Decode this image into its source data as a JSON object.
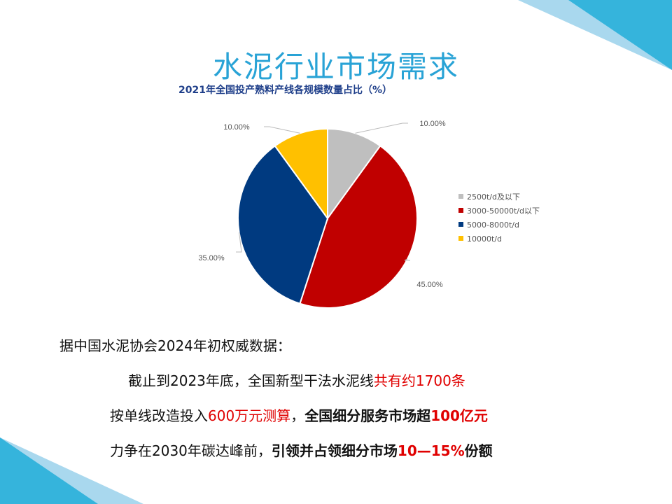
{
  "slide": {
    "title": "水泥行业市场需求",
    "lines": [
      {
        "segments": [
          {
            "text": "据中国水泥协会2024年初权威数据：",
            "style": "normal"
          }
        ]
      },
      {
        "segments": [
          {
            "text": "截止到2023年底，全国新型干法水泥线",
            "style": "normal"
          },
          {
            "text": "共有约1700条",
            "style": "red"
          }
        ]
      },
      {
        "segments": [
          {
            "text": "按单线改造投入",
            "style": "normal"
          },
          {
            "text": "600万元测算",
            "style": "red"
          },
          {
            "text": "，",
            "style": "normal"
          },
          {
            "text": "全国细分服务市场超",
            "style": "bold"
          },
          {
            "text": "100亿元",
            "style": "red-bold"
          }
        ]
      },
      {
        "segments": [
          {
            "text": "力争在2030年碳达峰前，",
            "style": "normal"
          },
          {
            "text": "引领并占领细分市场",
            "style": "bold"
          },
          {
            "text": "10—15%",
            "style": "red-bold"
          },
          {
            "text": "份额",
            "style": "bold"
          }
        ]
      }
    ],
    "accent_color": "#29a3d6"
  },
  "chart_data": {
    "type": "pie",
    "title": "2021年全国投产熟料产线各规模数量占比（%）",
    "categories": [
      "2500t/d及以下",
      "3000-50000t/d以下",
      "5000-8000t/d",
      "10000t/d"
    ],
    "values": [
      10,
      45,
      35,
      10
    ],
    "data_labels": [
      "10.00%",
      "45.00%",
      "35.00%",
      "10.00%"
    ],
    "colors": [
      "#bfbfbf",
      "#c00000",
      "#003a80",
      "#ffc000"
    ],
    "legend_position": "right"
  }
}
